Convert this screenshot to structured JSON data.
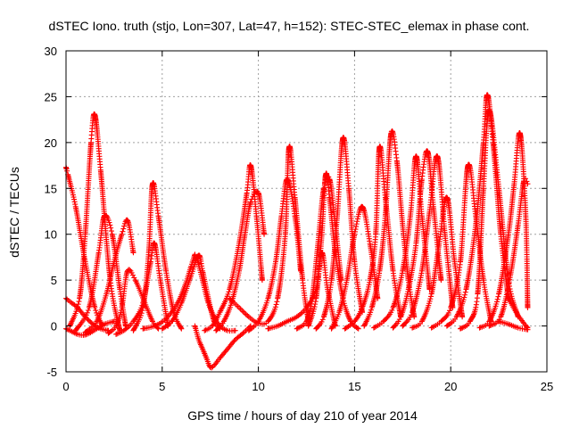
{
  "chart_data": {
    "type": "scatter",
    "title": "dSTEC Iono. truth (stjo, Lon=307, Lat=47, h=152): STEC-STEC_elemax in phase cont.",
    "xlabel": "GPS time / hours of day 210 of year 2014",
    "ylabel": "dSTEC  / TECUs",
    "xlim": [
      0,
      25
    ],
    "ylim": [
      -5,
      30
    ],
    "x_ticks": [
      0,
      5,
      10,
      15,
      20,
      25
    ],
    "y_ticks": [
      -5,
      0,
      5,
      10,
      15,
      20,
      25,
      30
    ],
    "x_tick_labels": [
      "0",
      "5",
      "10",
      "15",
      "20",
      "25"
    ],
    "y_tick_labels": [
      "-5",
      "0",
      "5",
      "10",
      "15",
      "20",
      "25",
      "30"
    ],
    "grid": true,
    "marker": "+",
    "marker_color": "#ff0000",
    "series": [
      {
        "x": [
          0.0,
          0.1,
          0.5,
          1.0,
          1.5,
          1.9
        ],
        "y": [
          17.3,
          16.5,
          13.0,
          7.0,
          2.0,
          0.0
        ]
      },
      {
        "x": [
          0.0,
          0.3,
          0.6,
          1.0,
          1.4,
          1.8,
          2.2
        ],
        "y": [
          3.0,
          2.5,
          2.0,
          1.0,
          0.2,
          -0.3,
          -0.5
        ]
      },
      {
        "x": [
          0.0,
          0.3,
          0.6,
          0.9,
          1.2,
          1.6,
          2.0,
          2.5
        ],
        "y": [
          -0.3,
          -0.6,
          -0.9,
          -1.0,
          -0.8,
          -0.3,
          0.2,
          0.5
        ]
      },
      {
        "x": [
          0.2,
          0.7,
          1.0,
          1.3,
          1.5,
          1.8,
          2.3,
          2.8
        ],
        "y": [
          0.0,
          3.0,
          10.0,
          20.0,
          23.0,
          17.0,
          5.0,
          -0.5
        ]
      },
      {
        "x": [
          0.5,
          1.2,
          1.7,
          2.0,
          2.4,
          2.8,
          3.1
        ],
        "y": [
          -0.5,
          2.0,
          8.0,
          12.0,
          10.0,
          4.0,
          0.0
        ]
      },
      {
        "x": [
          1.0,
          1.6,
          2.1,
          2.5,
          2.9,
          3.2,
          3.5
        ],
        "y": [
          -0.7,
          0.5,
          3.5,
          7.0,
          10.0,
          11.5,
          8.0
        ]
      },
      {
        "x": [
          2.2,
          2.6,
          2.9,
          3.2,
          3.6,
          4.1,
          4.5,
          4.8
        ],
        "y": [
          -0.8,
          0.0,
          2.0,
          6.0,
          5.0,
          2.5,
          0.5,
          -0.3
        ]
      },
      {
        "x": [
          2.6,
          3.0,
          3.5,
          4.0,
          4.4,
          4.6,
          4.9,
          5.3
        ],
        "y": [
          -0.9,
          -0.5,
          0.5,
          2.5,
          7.0,
          9.0,
          5.0,
          0.0
        ]
      },
      {
        "x": [
          3.5,
          4.0,
          4.3,
          4.5,
          4.8,
          5.2,
          5.6,
          6.0
        ],
        "y": [
          -0.5,
          2.0,
          8.0,
          15.5,
          12.0,
          6.0,
          1.5,
          -0.3
        ]
      },
      {
        "x": [
          4.0,
          4.6,
          5.2,
          5.8,
          6.2,
          6.5,
          6.7
        ],
        "y": [
          -0.3,
          0.0,
          0.8,
          2.5,
          4.5,
          6.5,
          7.8
        ]
      },
      {
        "x": [
          5.0,
          5.5,
          6.0,
          6.5,
          6.9,
          7.1,
          7.4,
          7.7,
          8.0
        ],
        "y": [
          -0.3,
          0.5,
          2.5,
          5.5,
          7.7,
          6.0,
          3.0,
          0.5,
          -0.3
        ]
      },
      {
        "x": [
          6.7,
          6.9,
          7.1,
          7.3,
          7.5,
          7.7,
          8.0,
          8.4,
          8.8,
          9.2,
          9.6
        ],
        "y": [
          0.0,
          -1.5,
          -2.5,
          -3.5,
          -4.5,
          -4.3,
          -3.5,
          -2.5,
          -1.5,
          -0.8,
          0.0
        ]
      },
      {
        "x": [
          6.8,
          7.1,
          7.4,
          7.7,
          8.0,
          8.4,
          8.8
        ],
        "y": [
          7.5,
          5.0,
          2.5,
          1.0,
          0.0,
          -0.5,
          -0.5
        ]
      },
      {
        "x": [
          7.2,
          7.6,
          8.0,
          8.5,
          9.0,
          9.4,
          9.6,
          9.9,
          10.2
        ],
        "y": [
          -0.5,
          0.0,
          1.5,
          4.0,
          9.0,
          14.5,
          17.5,
          12.0,
          5.0
        ]
      },
      {
        "x": [
          7.8,
          8.2,
          8.6,
          9.0,
          9.3,
          9.6,
          10.0,
          10.3
        ],
        "y": [
          -0.5,
          0.5,
          2.5,
          6.0,
          10.0,
          13.5,
          14.5,
          10.0
        ]
      },
      {
        "x": [
          8.5,
          9.0,
          9.5,
          10.0,
          10.5,
          11.0,
          11.4,
          11.6,
          11.9,
          12.3,
          12.6
        ],
        "y": [
          3.0,
          2.0,
          1.0,
          0.3,
          0.5,
          3.0,
          10.0,
          19.5,
          14.0,
          5.0,
          0.5
        ]
      },
      {
        "x": [
          9.5,
          10.0,
          10.5,
          10.9,
          11.2,
          11.5,
          11.9,
          12.2
        ],
        "y": [
          -0.5,
          0.5,
          3.0,
          7.0,
          12.0,
          16.0,
          12.0,
          6.0
        ]
      },
      {
        "x": [
          10.5,
          11.0,
          11.5,
          12.0,
          12.5,
          13.0,
          13.3,
          13.6,
          14.0
        ],
        "y": [
          -0.3,
          0.0,
          0.5,
          1.0,
          2.0,
          4.0,
          8.0,
          4.0,
          0.0
        ]
      },
      {
        "x": [
          12.0,
          12.5,
          12.8,
          13.1,
          13.4,
          13.7,
          14.0,
          14.3
        ],
        "y": [
          -0.3,
          0.5,
          3.0,
          9.0,
          15.0,
          16.0,
          11.0,
          5.0
        ]
      },
      {
        "x": [
          12.6,
          13.0,
          13.3,
          13.5,
          13.7,
          14.0,
          14.4,
          14.8,
          15.2
        ],
        "y": [
          0.0,
          3.0,
          10.0,
          16.5,
          14.0,
          8.0,
          3.0,
          0.5,
          -0.3
        ]
      },
      {
        "x": [
          13.0,
          13.4,
          13.8,
          14.1,
          14.4,
          14.7,
          15.0,
          15.4
        ],
        "y": [
          -0.3,
          1.0,
          5.0,
          12.0,
          20.5,
          15.0,
          7.0,
          1.5
        ]
      },
      {
        "x": [
          13.8,
          14.2,
          14.6,
          15.0,
          15.4,
          15.8,
          16.2
        ],
        "y": [
          -0.3,
          1.5,
          5.0,
          10.0,
          13.0,
          9.0,
          3.0
        ]
      },
      {
        "x": [
          14.5,
          15.0,
          15.4,
          15.8,
          16.1,
          16.3,
          16.6,
          17.0,
          17.4
        ],
        "y": [
          -0.3,
          0.5,
          2.0,
          5.0,
          10.0,
          19.5,
          14.0,
          6.0,
          1.0
        ]
      },
      {
        "x": [
          15.5,
          15.9,
          16.3,
          16.6,
          16.9,
          17.2,
          17.5,
          17.8,
          18.1
        ],
        "y": [
          0.0,
          2.0,
          6.0,
          12.0,
          21.0,
          18.0,
          11.0,
          5.0,
          1.0
        ]
      },
      {
        "x": [
          16.0,
          16.5,
          17.0,
          17.5,
          17.9,
          18.2,
          18.5,
          18.9
        ],
        "y": [
          -0.2,
          0.5,
          2.0,
          6.0,
          12.0,
          18.5,
          12.0,
          4.0
        ]
      },
      {
        "x": [
          17.0,
          17.4,
          17.8,
          18.2,
          18.5,
          18.8,
          19.1,
          19.5
        ],
        "y": [
          -0.2,
          1.0,
          4.0,
          9.0,
          16.0,
          19.0,
          13.0,
          5.0
        ]
      },
      {
        "x": [
          17.5,
          18.0,
          18.5,
          18.9,
          19.3,
          19.7,
          20.1
        ],
        "y": [
          0.0,
          1.5,
          6.0,
          12.5,
          18.5,
          10.0,
          2.0
        ]
      },
      {
        "x": [
          18.0,
          18.5,
          19.0,
          19.4,
          19.8,
          20.2,
          20.6
        ],
        "y": [
          -0.2,
          0.5,
          3.5,
          9.0,
          14.0,
          7.0,
          1.0
        ]
      },
      {
        "x": [
          19.0,
          19.5,
          20.0,
          20.5,
          20.9,
          21.3,
          21.7,
          22.1
        ],
        "y": [
          -0.2,
          0.5,
          2.0,
          7.0,
          17.5,
          12.0,
          5.0,
          0.5
        ]
      },
      {
        "x": [
          19.8,
          20.3,
          20.8,
          21.3,
          21.7,
          21.9,
          22.2,
          22.6,
          23.0
        ],
        "y": [
          0.0,
          1.0,
          4.0,
          11.0,
          20.0,
          25.2,
          20.0,
          10.0,
          3.0
        ]
      },
      {
        "x": [
          20.5,
          21.0,
          21.4,
          21.7,
          22.0,
          22.5,
          23.0,
          23.5
        ],
        "y": [
          -0.3,
          0.5,
          3.5,
          15.0,
          23.5,
          15.0,
          5.0,
          1.0
        ]
      },
      {
        "x": [
          21.5,
          22.0,
          22.5,
          23.0,
          23.3,
          23.6,
          23.9,
          24.0
        ],
        "y": [
          -0.2,
          0.5,
          3.5,
          10.0,
          15.5,
          21.0,
          12.0,
          2.0
        ]
      },
      {
        "x": [
          22.0,
          22.6,
          23.1,
          23.5,
          23.8,
          24.0
        ],
        "y": [
          0.0,
          1.0,
          5.5,
          11.0,
          15.8,
          15.5
        ]
      },
      {
        "x": [
          22.5,
          23.0,
          23.5,
          24.0
        ],
        "y": [
          0.5,
          0.2,
          -0.2,
          -0.4
        ]
      },
      {
        "x": [
          23.0,
          23.4,
          23.8,
          24.0
        ],
        "y": [
          3.0,
          1.5,
          0.3,
          -0.2
        ]
      }
    ]
  }
}
